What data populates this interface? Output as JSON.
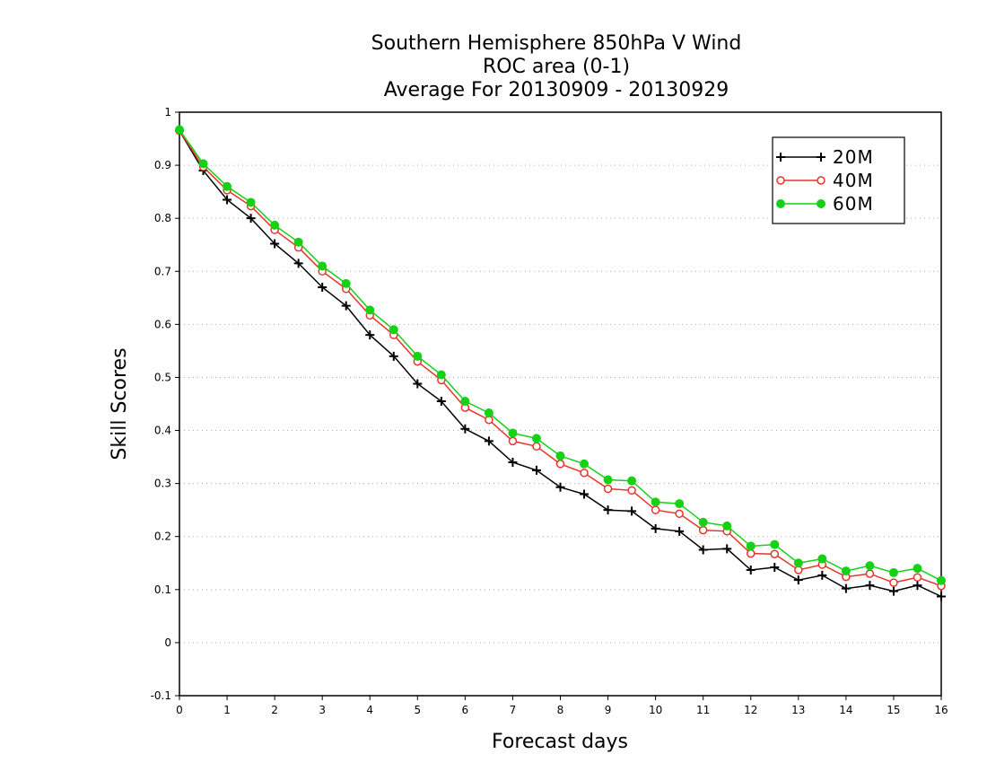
{
  "chart_data": {
    "type": "line",
    "title_lines": [
      "Southern Hemisphere 850hPa V Wind",
      "ROC area (0-1)",
      "Average For 20130909 - 20130929"
    ],
    "xlabel": "Forecast days",
    "ylabel": "Skill Scores",
    "xlim": [
      0,
      16
    ],
    "ylim": [
      -0.1,
      1
    ],
    "x_ticks": [
      0,
      1,
      2,
      3,
      4,
      5,
      6,
      7,
      8,
      9,
      10,
      11,
      12,
      13,
      14,
      15,
      16
    ],
    "y_ticks": [
      -0.1,
      0,
      0.1,
      0.2,
      0.3,
      0.4,
      0.5,
      0.6,
      0.7,
      0.8,
      0.9,
      1
    ],
    "y_tick_labels": [
      "-0.1",
      "0",
      "0.1",
      "0.2",
      "0.3",
      "0.4",
      "0.5",
      "0.6",
      "0.7",
      "0.8",
      "0.9",
      "1"
    ],
    "grid": "horizontal dotted",
    "legend_position": "top-right",
    "x": [
      0,
      0.5,
      1,
      1.5,
      2,
      2.5,
      3,
      3.5,
      4,
      4.5,
      5,
      5.5,
      6,
      6.5,
      7,
      7.5,
      8,
      8.5,
      9,
      9.5,
      10,
      10.5,
      11,
      11.5,
      12,
      12.5,
      13,
      13.5,
      14,
      14.5,
      15,
      15.5,
      16
    ],
    "series": [
      {
        "name": "20M",
        "marker": "plus",
        "color": "#000000",
        "values": [
          0.965,
          0.89,
          0.835,
          0.8,
          0.752,
          0.715,
          0.67,
          0.635,
          0.58,
          0.54,
          0.488,
          0.455,
          0.403,
          0.38,
          0.34,
          0.325,
          0.293,
          0.28,
          0.25,
          0.248,
          0.215,
          0.21,
          0.175,
          0.177,
          0.137,
          0.142,
          0.118,
          0.127,
          0.102,
          0.108,
          0.097,
          0.108,
          0.087
        ]
      },
      {
        "name": "40M",
        "marker": "open-circle",
        "color": "#e8332b",
        "values": [
          0.965,
          0.897,
          0.853,
          0.823,
          0.778,
          0.745,
          0.7,
          0.667,
          0.617,
          0.58,
          0.53,
          0.495,
          0.443,
          0.42,
          0.38,
          0.37,
          0.337,
          0.32,
          0.29,
          0.287,
          0.25,
          0.243,
          0.212,
          0.21,
          0.168,
          0.167,
          0.137,
          0.147,
          0.124,
          0.13,
          0.113,
          0.123,
          0.107
        ]
      },
      {
        "name": "60M",
        "marker": "filled-circle",
        "color": "#17d117",
        "values": [
          0.967,
          0.903,
          0.86,
          0.83,
          0.787,
          0.755,
          0.71,
          0.677,
          0.627,
          0.59,
          0.54,
          0.505,
          0.455,
          0.433,
          0.395,
          0.385,
          0.352,
          0.337,
          0.307,
          0.305,
          0.265,
          0.262,
          0.227,
          0.22,
          0.182,
          0.185,
          0.15,
          0.158,
          0.135,
          0.145,
          0.132,
          0.14,
          0.117
        ]
      }
    ]
  }
}
